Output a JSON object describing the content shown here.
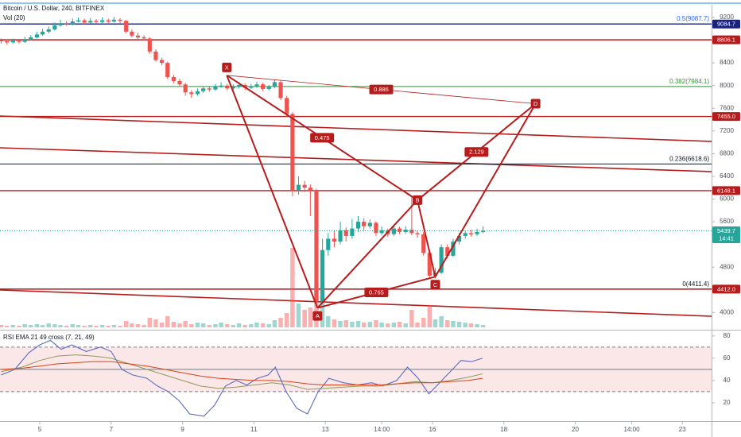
{
  "header": {
    "title": "Bitcoin / U.S. Dollar, 240, BITFINEX",
    "volume_label": "Vol (20)",
    "rsi_label": "RSI EMA 21 49 cross (7, 21, 49)"
  },
  "chart_data": [
    {
      "type": "candlestick",
      "xlim": [
        3.886,
        23.82
      ],
      "ylim": [
        3724,
        9396
      ],
      "xticks": [
        5,
        7,
        9,
        11,
        13,
        {
          "value": 14.583,
          "label": "14:00"
        },
        16,
        18,
        20,
        {
          "value": 21.583,
          "label": "14:00"
        },
        23
      ],
      "yticks": [
        9200,
        8400,
        8000,
        7600,
        7200,
        6800,
        6400,
        6000,
        5600,
        4800,
        4000
      ],
      "up_color": "#26a69a",
      "down_color": "#ef5350",
      "x": [
        3.92,
        4.08,
        4.25,
        4.42,
        4.58,
        4.75,
        4.92,
        5.08,
        5.25,
        5.42,
        5.58,
        5.75,
        5.92,
        6.08,
        6.25,
        6.42,
        6.58,
        6.75,
        6.92,
        7.08,
        7.25,
        7.42,
        7.58,
        7.75,
        7.92,
        8.08,
        8.25,
        8.42,
        8.58,
        8.75,
        8.92,
        9.08,
        9.25,
        9.42,
        9.58,
        9.75,
        9.92,
        10.08,
        10.25,
        10.42,
        10.58,
        10.75,
        10.92,
        11.08,
        11.25,
        11.42,
        11.58,
        11.75,
        11.92,
        12.08,
        12.25,
        12.42,
        12.58,
        12.75,
        12.92,
        13.08,
        13.25,
        13.42,
        13.58,
        13.75,
        13.92,
        14.08,
        14.25,
        14.42,
        14.58,
        14.75,
        14.92,
        15.08,
        15.25,
        15.42,
        15.58,
        15.75,
        15.92,
        16.08,
        16.25,
        16.42,
        16.58,
        16.75,
        16.92,
        17.08,
        17.25,
        17.42
      ],
      "ohlc": [
        [
          8800,
          8830,
          8740,
          8780
        ],
        [
          8780,
          8810,
          8720,
          8760
        ],
        [
          8760,
          8830,
          8740,
          8790
        ],
        [
          8790,
          8820,
          8740,
          8770
        ],
        [
          8770,
          8860,
          8750,
          8820
        ],
        [
          8820,
          8890,
          8800,
          8850
        ],
        [
          8850,
          8950,
          8830,
          8900
        ],
        [
          8900,
          9000,
          8880,
          8950
        ],
        [
          8950,
          9040,
          8920,
          8990
        ],
        [
          8990,
          9110,
          8970,
          9060
        ],
        [
          9060,
          9160,
          9040,
          9100
        ],
        [
          9100,
          9140,
          9050,
          9080
        ],
        [
          9080,
          9180,
          9060,
          9130
        ],
        [
          9130,
          9200,
          9110,
          9150
        ],
        [
          9150,
          9180,
          9080,
          9110
        ],
        [
          9110,
          9190,
          9090,
          9140
        ],
        [
          9140,
          9170,
          9090,
          9120
        ],
        [
          9120,
          9200,
          9100,
          9150
        ],
        [
          9150,
          9180,
          9100,
          9130
        ],
        [
          9130,
          9210,
          9110,
          9160
        ],
        [
          9160,
          9190,
          9100,
          9140
        ],
        [
          9140,
          9160,
          8920,
          8950
        ],
        [
          8950,
          8990,
          8850,
          8880
        ],
        [
          8880,
          8930,
          8820,
          8850
        ],
        [
          8850,
          8890,
          8800,
          8830
        ],
        [
          8830,
          8850,
          8560,
          8600
        ],
        [
          8600,
          8640,
          8420,
          8450
        ],
        [
          8450,
          8490,
          8360,
          8400
        ],
        [
          8400,
          8420,
          8120,
          8150
        ],
        [
          8150,
          8190,
          8040,
          8080
        ],
        [
          8080,
          8120,
          7980,
          8020
        ],
        [
          8020,
          8050,
          7820,
          7880
        ],
        [
          7880,
          7920,
          7780,
          7850
        ],
        [
          7850,
          7950,
          7820,
          7900
        ],
        [
          7900,
          7990,
          7870,
          7950
        ],
        [
          7950,
          7980,
          7890,
          7930
        ],
        [
          7930,
          8030,
          7910,
          7990
        ],
        [
          7990,
          8060,
          7960,
          8000
        ],
        [
          8000,
          8030,
          7910,
          7950
        ],
        [
          7950,
          8020,
          7920,
          7980
        ],
        [
          7980,
          8060,
          7950,
          8010
        ],
        [
          8010,
          8040,
          7920,
          7960
        ],
        [
          7960,
          8030,
          7940,
          7990
        ],
        [
          7990,
          8070,
          7960,
          8020
        ],
        [
          8020,
          8050,
          7900,
          7940
        ],
        [
          7940,
          8010,
          7910,
          7980
        ],
        [
          7980,
          8100,
          7950,
          8060
        ],
        [
          8060,
          8090,
          7740,
          7780
        ],
        [
          7780,
          7820,
          7450,
          7500
        ],
        [
          7500,
          7530,
          6050,
          6150
        ],
        [
          6150,
          6400,
          6080,
          6250
        ],
        [
          6250,
          6320,
          6120,
          6200
        ],
        [
          6200,
          6260,
          5700,
          6150
        ],
        [
          6150,
          6180,
          4100,
          4200
        ],
        [
          4200,
          5300,
          4150,
          5100
        ],
        [
          5100,
          5400,
          5000,
          5300
        ],
        [
          5300,
          5450,
          5150,
          5250
        ],
        [
          5250,
          5600,
          5200,
          5450
        ],
        [
          5450,
          5500,
          5250,
          5350
        ],
        [
          5350,
          5650,
          5300,
          5480
        ],
        [
          5480,
          5700,
          5420,
          5600
        ],
        [
          5600,
          5660,
          5450,
          5520
        ],
        [
          5520,
          5640,
          5480,
          5580
        ],
        [
          5580,
          5610,
          5350,
          5400
        ],
        [
          5400,
          5520,
          5360,
          5450
        ],
        [
          5450,
          5480,
          5330,
          5380
        ],
        [
          5380,
          5530,
          5350,
          5480
        ],
        [
          5480,
          5510,
          5380,
          5420
        ],
        [
          5420,
          5520,
          5390,
          5460
        ],
        [
          5460,
          6050,
          5360,
          5400
        ],
        [
          5400,
          5450,
          5320,
          5380
        ],
        [
          5380,
          5420,
          5000,
          5050
        ],
        [
          5050,
          5100,
          4600,
          4650
        ],
        [
          4650,
          4780,
          4600,
          4700
        ],
        [
          4700,
          5200,
          4680,
          5150
        ],
        [
          5150,
          5200,
          4950,
          5000
        ],
        [
          5000,
          5300,
          4980,
          5250
        ],
        [
          5250,
          5400,
          5200,
          5350
        ],
        [
          5350,
          5450,
          5300,
          5400
        ],
        [
          5400,
          5460,
          5340,
          5380
        ],
        [
          5380,
          5480,
          5350,
          5420
        ],
        [
          5420,
          5520,
          5400,
          5440
        ]
      ],
      "volume": [
        3,
        2,
        3,
        2,
        4,
        3,
        4,
        3,
        5,
        4,
        3,
        2,
        4,
        3,
        2,
        3,
        2,
        3,
        2,
        3,
        2,
        8,
        5,
        4,
        3,
        12,
        10,
        6,
        14,
        7,
        5,
        8,
        4,
        6,
        5,
        3,
        4,
        6,
        4,
        3,
        5,
        3,
        4,
        6,
        5,
        4,
        9,
        12,
        18,
        100,
        30,
        22,
        25,
        55,
        45,
        14,
        10,
        8,
        9,
        7,
        8,
        6,
        7,
        9,
        6,
        5,
        6,
        7,
        5,
        22,
        6,
        12,
        28,
        10,
        14,
        9,
        8,
        7,
        6,
        5,
        4,
        3
      ],
      "hlines": [
        {
          "price": 9084.7,
          "label": "9084.7",
          "color": "#1a237e"
        },
        {
          "price": 8806.1,
          "label": "8806.1",
          "color": "#b71c1c"
        },
        {
          "price": 7455.0,
          "label": "7455.0",
          "color": "#b71c1c"
        },
        {
          "price": 6148.1,
          "label": "6148.1",
          "color": "#b71c1c"
        },
        {
          "price": 4412.0,
          "label": "4412.0",
          "color": "#b71c1c"
        }
      ],
      "fib_levels": [
        {
          "price": 9087.7,
          "label": "0.5(9087.7)",
          "color": "#2962ff"
        },
        {
          "price": 7984.1,
          "label": "0.382(7984.1)",
          "color": "#388e3c"
        },
        {
          "price": 6618.6,
          "label": "0.236(6618.6)",
          "color": "#131722"
        },
        {
          "price": 4411.4,
          "label": "0(4411.4)",
          "color": "#131722"
        }
      ],
      "last_price": {
        "value": 5439.7,
        "time": "14:41",
        "color": "#26a69a"
      },
      "pattern": {
        "color": "#b71c1c",
        "points": [
          {
            "label": "X",
            "x": 10.24,
            "price": 8180
          },
          {
            "label": "A",
            "x": 12.78,
            "price": 4080
          },
          {
            "label": "B",
            "x": 15.58,
            "price": 5980
          },
          {
            "label": "C",
            "x": 16.08,
            "price": 4630
          },
          {
            "label": "D",
            "x": 18.89,
            "price": 7680
          }
        ],
        "ratios": [
          0.886,
          0.475,
          2.129,
          0.765
        ]
      }
    },
    {
      "type": "line",
      "ylim": [
        5,
        82
      ],
      "yticks": [
        20,
        40,
        60,
        80
      ],
      "bands": {
        "upper": 70,
        "middle": 50,
        "lower": 30
      },
      "band_color": "#f8d7d7",
      "series": [
        {
          "color": "#5c6bc0",
          "x": [
            3.92,
            4.3,
            4.7,
            5.0,
            5.3,
            5.6,
            5.9,
            6.3,
            6.7,
            7.0,
            7.3,
            7.6,
            8.0,
            8.3,
            8.6,
            8.9,
            9.2,
            9.6,
            9.9,
            10.2,
            10.5,
            10.8,
            11.1,
            11.4,
            11.6,
            11.9,
            12.2,
            12.5,
            12.8,
            13.1,
            13.5,
            13.9,
            14.3,
            14.6,
            15.0,
            15.3,
            15.6,
            15.9,
            16.2,
            16.5,
            16.8,
            17.1,
            17.4
          ],
          "values": [
            45,
            50,
            65,
            72,
            76,
            68,
            72,
            66,
            70,
            66,
            50,
            45,
            42,
            35,
            30,
            22,
            10,
            8,
            18,
            35,
            40,
            36,
            42,
            45,
            52,
            30,
            15,
            10,
            30,
            42,
            38,
            36,
            38,
            35,
            40,
            52,
            42,
            28,
            38,
            48,
            58,
            57,
            60
          ]
        },
        {
          "color": "#8d9a5b",
          "x": [
            3.92,
            4.5,
            5.0,
            5.5,
            6.0,
            6.5,
            7.0,
            7.5,
            8.0,
            8.5,
            9.0,
            9.5,
            10.0,
            10.5,
            11.0,
            11.5,
            12.0,
            12.5,
            13.0,
            13.5,
            14.0,
            14.5,
            15.0,
            15.5,
            16.0,
            16.5,
            17.0,
            17.4
          ],
          "values": [
            48,
            52,
            58,
            62,
            63,
            62,
            60,
            55,
            50,
            45,
            40,
            35,
            33,
            34,
            36,
            38,
            36,
            32,
            33,
            34,
            35,
            35,
            37,
            39,
            38,
            40,
            43,
            46
          ]
        },
        {
          "color": "#d84315",
          "x": [
            3.92,
            4.5,
            5.0,
            5.5,
            6.0,
            6.5,
            7.0,
            7.5,
            8.0,
            8.5,
            9.0,
            9.5,
            10.0,
            10.5,
            11.0,
            11.5,
            12.0,
            12.5,
            13.0,
            13.5,
            14.0,
            14.5,
            15.0,
            15.5,
            16.0,
            16.5,
            17.0,
            17.4
          ],
          "values": [
            50,
            51,
            53,
            55,
            56,
            57,
            57,
            55,
            53,
            50,
            47,
            44,
            42,
            41,
            40,
            40,
            39,
            37,
            36,
            36,
            36,
            36,
            37,
            38,
            38,
            39,
            40,
            42
          ]
        }
      ]
    }
  ]
}
